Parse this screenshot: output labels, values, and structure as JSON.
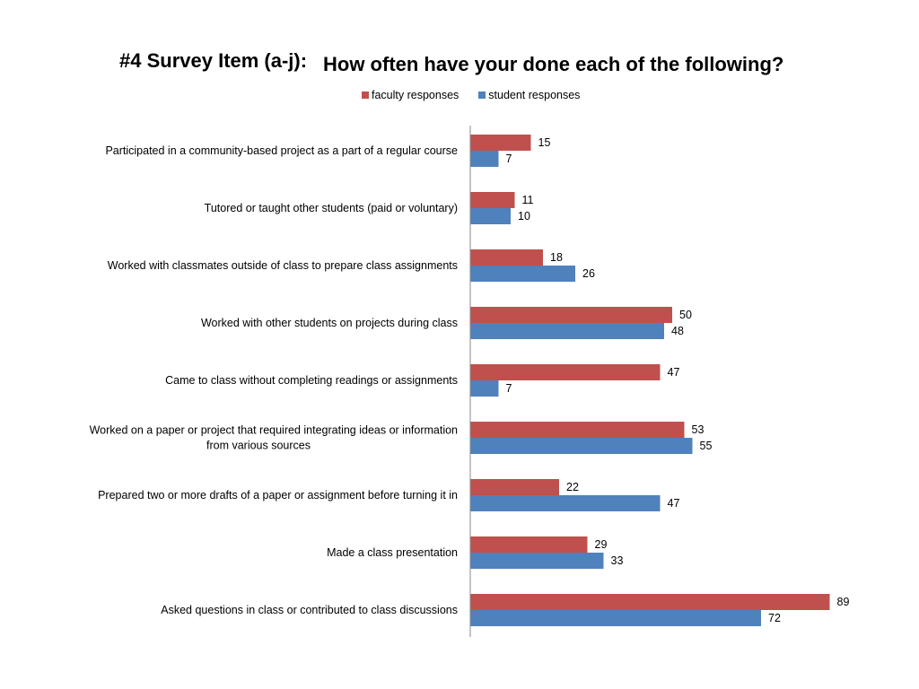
{
  "title": {
    "prefix": "#4 Survey Item (a-j):",
    "main": "How often have your done each of the following?"
  },
  "colors": {
    "faculty": "#c0504d",
    "student": "#4f81bd",
    "axis": "#888888"
  },
  "chart_data": {
    "type": "bar",
    "orientation": "horizontal",
    "categories": [
      [
        "Participated in a community-based project as a part of a regular course"
      ],
      [
        "Tutored or taught other students (paid or voluntary)"
      ],
      [
        "Worked with classmates outside of class to prepare class assignments"
      ],
      [
        "Worked with other students on projects during class"
      ],
      [
        "Came to class without completing readings or assignments"
      ],
      [
        "Worked on a paper or project that required integrating ideas or information",
        "from various sources"
      ],
      [
        "Prepared two or more drafts of a paper or assignment before turning it in"
      ],
      [
        "Made a class presentation"
      ],
      [
        "Asked questions in class or contributed to class discussions"
      ]
    ],
    "series": [
      {
        "name": "faculty responses",
        "values": [
          15,
          11,
          18,
          50,
          47,
          53,
          22,
          29,
          89
        ]
      },
      {
        "name": "student responses",
        "values": [
          7,
          10,
          26,
          48,
          7,
          55,
          47,
          33,
          72
        ]
      }
    ],
    "xlim": [
      0,
      100
    ],
    "grid": false,
    "legend": "top-center"
  }
}
